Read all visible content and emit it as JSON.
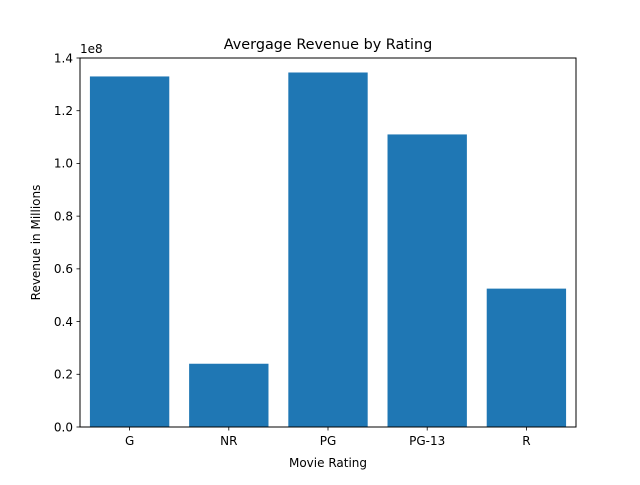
{
  "chart_data": {
    "type": "bar",
    "title": "Avergage Revenue by Rating",
    "xlabel": "Movie Rating",
    "ylabel": "Revenue in Millions",
    "y_multiplier_label": "1e8",
    "categories": [
      "G",
      "NR",
      "PG",
      "PG-13",
      "R"
    ],
    "values": [
      1.33,
      0.24,
      1.345,
      1.11,
      0.525
    ],
    "ylim": [
      0,
      1.4
    ],
    "yticks": [
      0.0,
      0.2,
      0.4,
      0.6,
      0.8,
      1.0,
      1.2,
      1.4
    ],
    "ytick_labels": [
      "0.0",
      "0.2",
      "0.4",
      "0.6",
      "0.8",
      "1.0",
      "1.2",
      "1.4"
    ],
    "bar_color": "#1f77b4",
    "grid": false,
    "legend": "none"
  }
}
